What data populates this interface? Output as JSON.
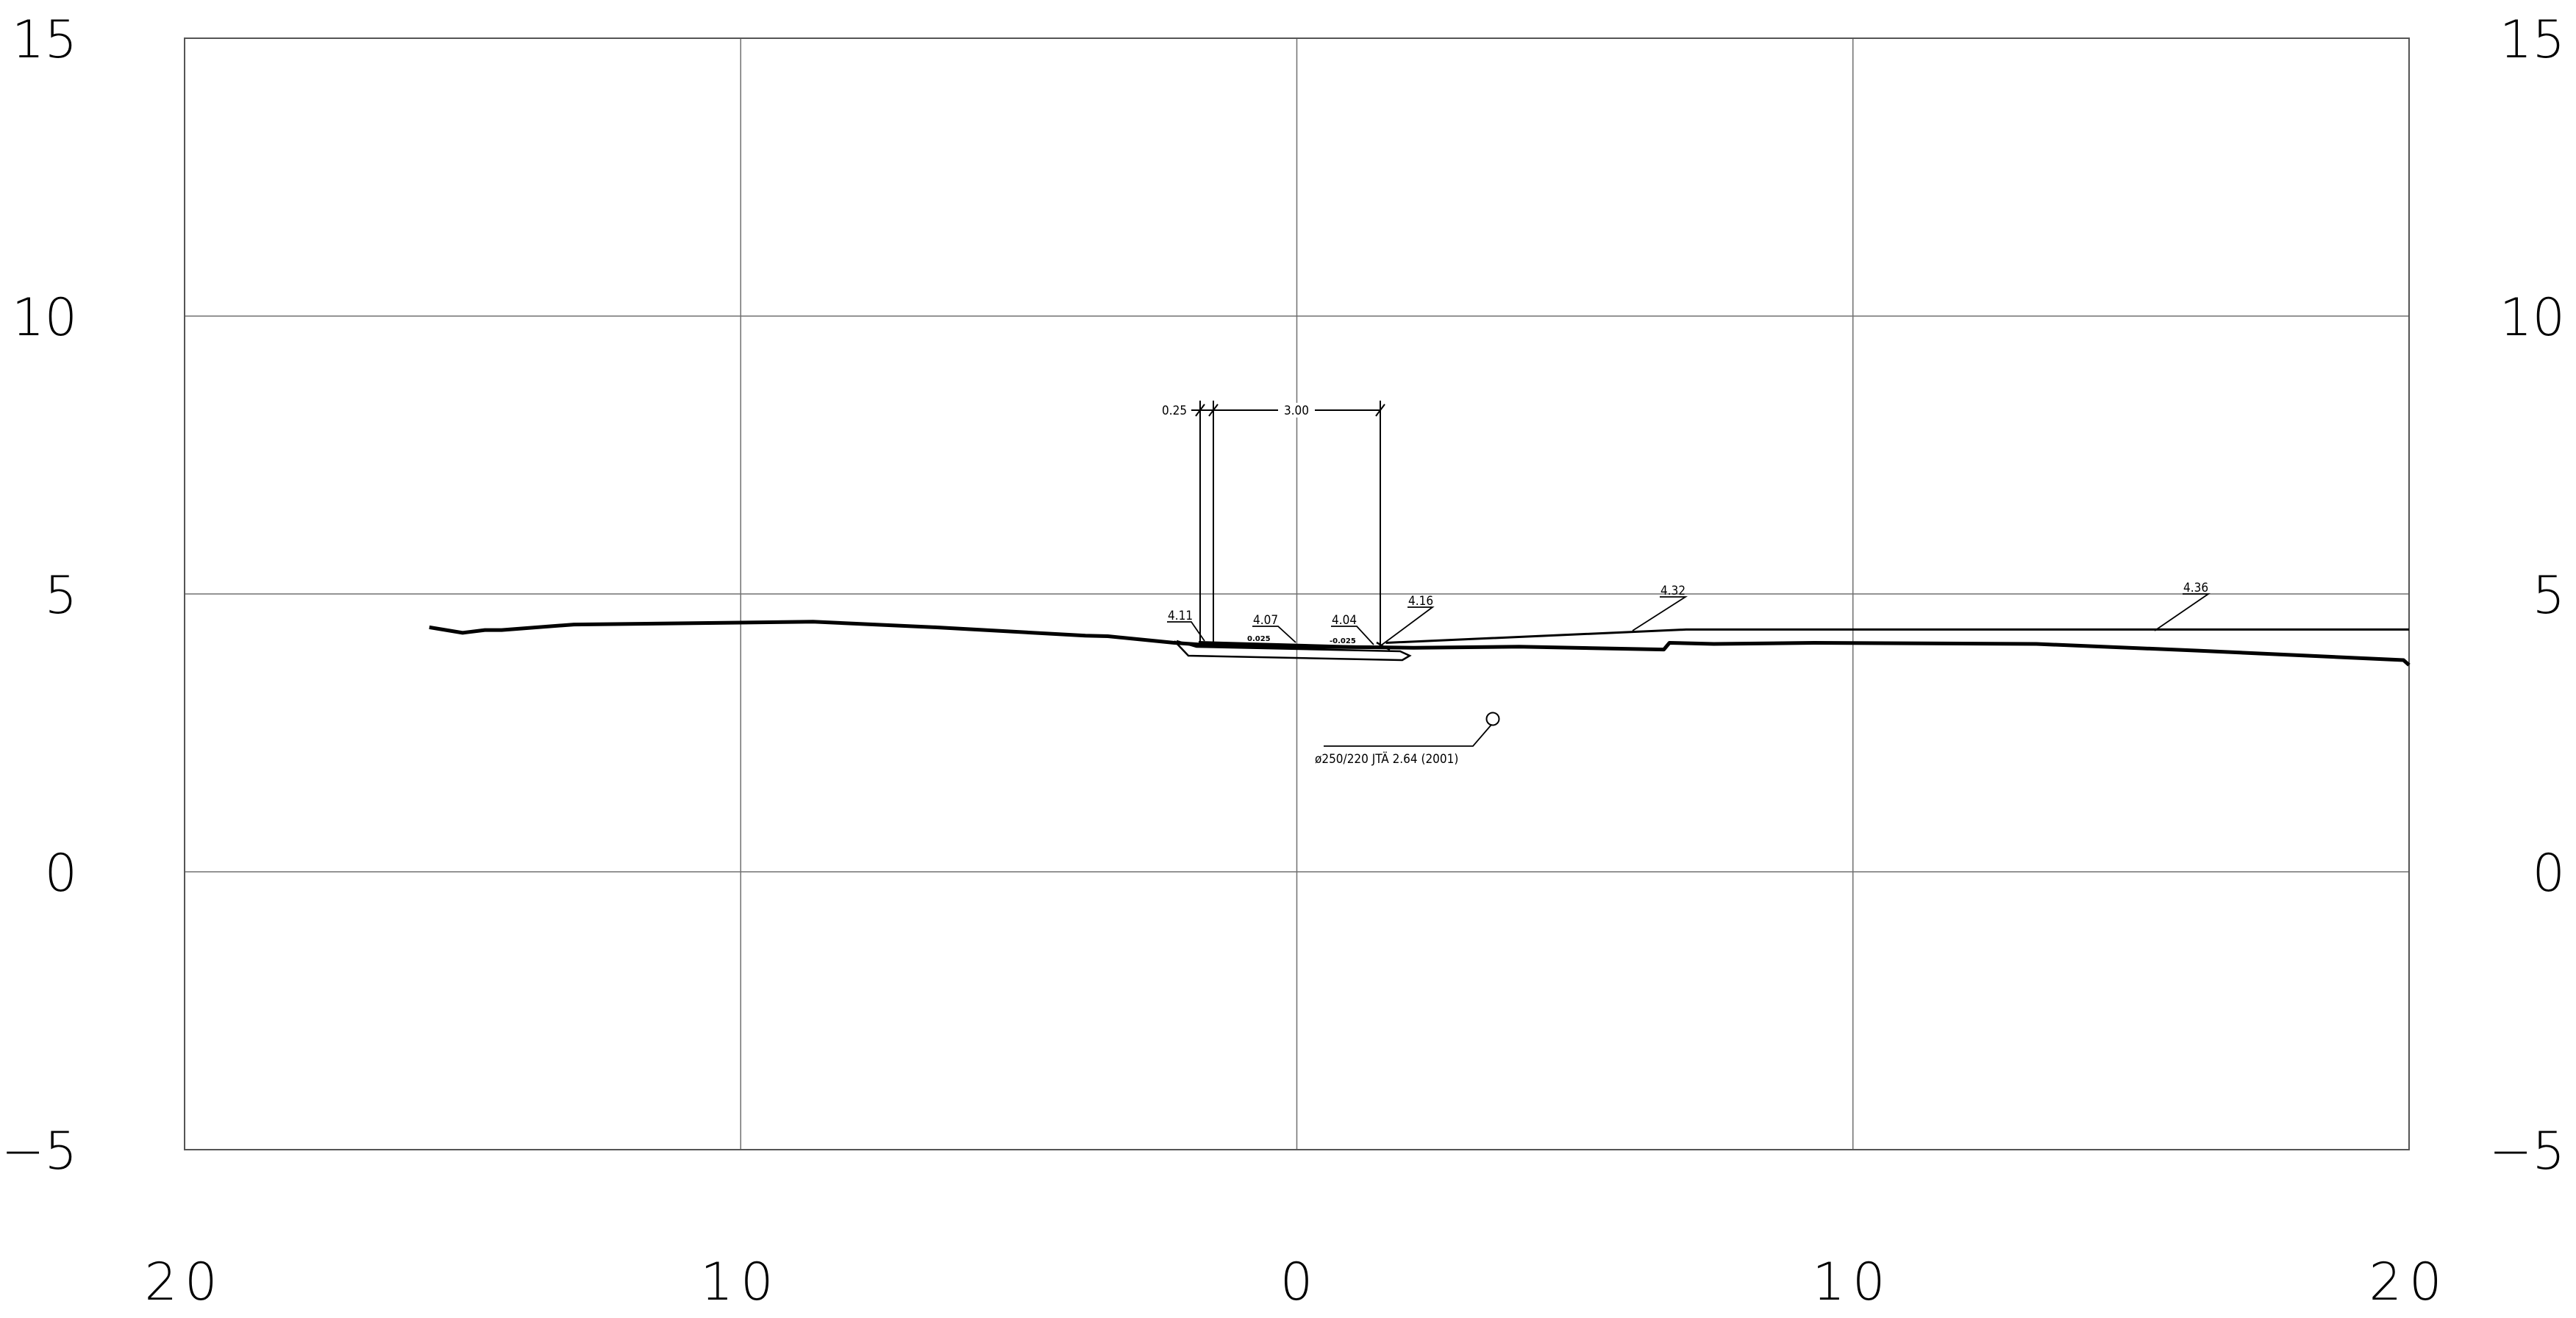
{
  "drawing": {
    "y_axis_ticks": [
      "15",
      "10",
      "5",
      "0",
      "−5"
    ],
    "x_axis_ticks": [
      "20",
      "10",
      "0",
      "10",
      "20"
    ],
    "offset_range": [
      -20,
      20
    ],
    "elevation_range": [
      -5,
      15
    ],
    "grid": true,
    "colors": {
      "line": "#000000",
      "grid": "#707070",
      "background": "#ffffff"
    }
  },
  "annotations": {
    "dim_left": "0.25",
    "dim_main": "3.00",
    "elev_left_edge": "4.11",
    "elev_center": "4.07",
    "elev_right_inner": "4.04",
    "elev_right_edge": "4.16",
    "elev_right_1": "4.32",
    "elev_right_2": "4.36",
    "slope_left": "0.025",
    "slope_right": "-0.025",
    "pipe": "ø250/220 JTÄ 2.64 (2001)"
  },
  "terrain_profile": [
    [
      -15.6,
      4.4
    ],
    [
      -15.0,
      4.3
    ],
    [
      -14.6,
      4.35
    ],
    [
      -14.3,
      4.35
    ],
    [
      -13.0,
      4.45
    ],
    [
      -8.7,
      4.5
    ],
    [
      -6.5,
      4.4
    ],
    [
      -3.8,
      4.25
    ],
    [
      -3.4,
      4.24
    ],
    [
      -2.2,
      4.12
    ],
    [
      -1.6,
      4.08
    ],
    [
      0,
      4.05
    ],
    [
      1.5,
      4.04
    ],
    [
      2.1,
      4.03
    ],
    [
      4.0,
      4.05
    ],
    [
      6.6,
      4.0
    ],
    [
      6.7,
      4.12
    ],
    [
      7.5,
      4.1
    ],
    [
      9.3,
      4.12
    ],
    [
      13.3,
      4.1
    ],
    [
      16.2,
      3.98
    ],
    [
      19.9,
      3.81
    ],
    [
      20.0,
      3.72
    ]
  ],
  "road_surface": [
    [
      1.6,
      4.12
    ],
    [
      7.0,
      4.36
    ],
    [
      20.0,
      4.36
    ]
  ]
}
